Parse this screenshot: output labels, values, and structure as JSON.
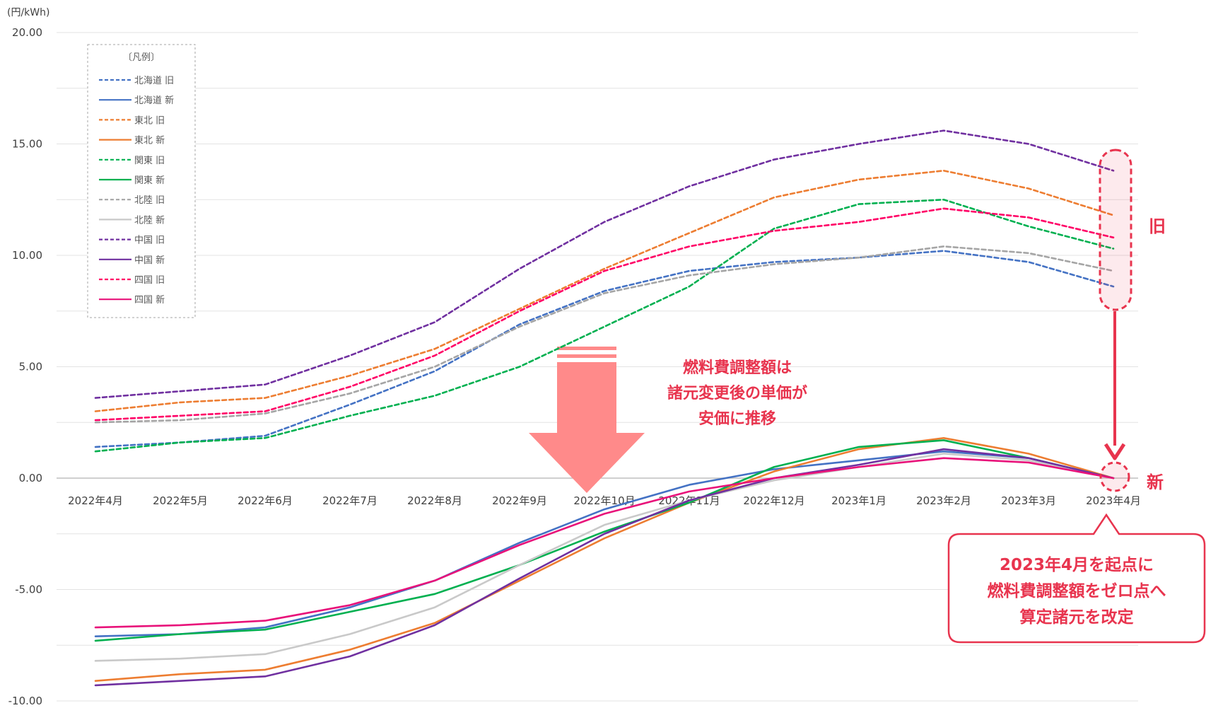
{
  "chart_data": {
    "type": "line",
    "unit_label": "(円/kWh)",
    "categories": [
      "2022年4月",
      "2022年5月",
      "2022年6月",
      "2022年7月",
      "2022年8月",
      "2022年9月",
      "2022年10月",
      "2022年11月",
      "2022年12月",
      "2023年1月",
      "2023年2月",
      "2023年3月",
      "2023年4月"
    ],
    "ylim": [
      -10,
      20
    ],
    "y_ticks": [
      {
        "value": 20,
        "label": "20.00"
      },
      {
        "value": 15,
        "label": "15.00"
      },
      {
        "value": 10,
        "label": "10.00"
      },
      {
        "value": 5,
        "label": "5.00"
      },
      {
        "value": 0,
        "label": "0.00"
      },
      {
        "value": -5,
        "label": "-5.00"
      },
      {
        "value": -10,
        "label": "-10.00"
      }
    ],
    "grid": true,
    "legend_title": "〔凡例〕",
    "legend_position": "top-left",
    "series": [
      {
        "name": "北海道 旧",
        "color": "#4472c4",
        "dash": true,
        "values": [
          1.4,
          1.6,
          1.9,
          3.3,
          4.8,
          6.9,
          8.4,
          9.3,
          9.7,
          9.9,
          10.2,
          9.7,
          8.6
        ]
      },
      {
        "name": "北海道 新",
        "color": "#4472c4",
        "dash": false,
        "values": [
          -7.1,
          -7.0,
          -6.7,
          -5.8,
          -4.6,
          -2.9,
          -1.4,
          -0.3,
          0.4,
          0.8,
          1.2,
          0.9,
          0.0
        ]
      },
      {
        "name": "東北 旧",
        "color": "#ed7d31",
        "dash": true,
        "values": [
          3.0,
          3.4,
          3.6,
          4.6,
          5.8,
          7.6,
          9.4,
          11.0,
          12.6,
          13.4,
          13.8,
          13.0,
          11.8
        ]
      },
      {
        "name": "東北 新",
        "color": "#ed7d31",
        "dash": false,
        "values": [
          -9.1,
          -8.8,
          -8.6,
          -7.7,
          -6.5,
          -4.6,
          -2.7,
          -1.1,
          0.3,
          1.3,
          1.8,
          1.1,
          0.0
        ]
      },
      {
        "name": "関東 旧",
        "color": "#00b050",
        "dash": true,
        "values": [
          1.2,
          1.6,
          1.8,
          2.8,
          3.7,
          5.0,
          6.8,
          8.6,
          11.2,
          12.3,
          12.5,
          11.3,
          10.3
        ]
      },
      {
        "name": "関東 新",
        "color": "#00b050",
        "dash": false,
        "values": [
          -7.3,
          -7.0,
          -6.8,
          -6.0,
          -5.2,
          -3.9,
          -2.4,
          -1.1,
          0.5,
          1.4,
          1.7,
          0.9,
          0.0
        ]
      },
      {
        "name": "北陸 旧",
        "color": "#a5a5a5",
        "dash": true,
        "values": [
          2.5,
          2.6,
          2.9,
          3.8,
          5.0,
          6.8,
          8.3,
          9.1,
          9.6,
          9.9,
          10.4,
          10.1,
          9.3
        ]
      },
      {
        "name": "北陸 新",
        "color": "#c9c9c9",
        "dash": false,
        "values": [
          -8.2,
          -8.1,
          -7.9,
          -7.0,
          -5.8,
          -3.9,
          -2.1,
          -1.0,
          -0.1,
          0.5,
          1.1,
          0.8,
          0.0
        ]
      },
      {
        "name": "中国 旧",
        "color": "#7030a0",
        "dash": true,
        "values": [
          3.6,
          3.9,
          4.2,
          5.5,
          7.0,
          9.4,
          11.5,
          13.1,
          14.3,
          15.0,
          15.6,
          15.0,
          13.8
        ]
      },
      {
        "name": "中国 新",
        "color": "#7030a0",
        "dash": false,
        "values": [
          -9.3,
          -9.1,
          -8.9,
          -8.0,
          -6.6,
          -4.5,
          -2.5,
          -1.0,
          0.0,
          0.6,
          1.3,
          0.9,
          0.0
        ]
      },
      {
        "name": "四国 旧",
        "color": "#ff0066",
        "dash": true,
        "values": [
          2.6,
          2.8,
          3.0,
          4.1,
          5.5,
          7.5,
          9.3,
          10.4,
          11.1,
          11.5,
          12.1,
          11.7,
          10.8
        ]
      },
      {
        "name": "四国 新",
        "color": "#e8127a",
        "dash": false,
        "values": [
          -6.7,
          -6.6,
          -6.4,
          -5.7,
          -4.6,
          -3.0,
          -1.6,
          -0.6,
          0.0,
          0.5,
          0.9,
          0.7,
          0.0
        ]
      }
    ],
    "annotations": {
      "center_note": [
        "燃料費調整額は",
        "諸元変更後の単価が",
        "安価に推移"
      ],
      "old_marker": "旧",
      "new_marker": "新",
      "callout": [
        "2023年4月を起点に",
        "燃料費調整額をゼロ点へ",
        "算定諸元を改定"
      ]
    },
    "accent_color": "#e8344e"
  }
}
